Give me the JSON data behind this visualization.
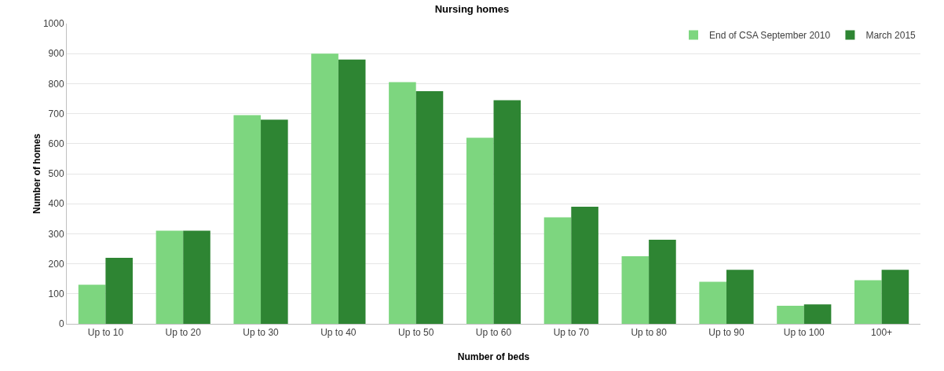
{
  "chart_data": {
    "type": "bar",
    "title": "Nursing homes",
    "xlabel": "Number of beds",
    "ylabel": "Number of homes",
    "categories": [
      "Up to 10",
      "Up to 20",
      "Up to 30",
      "Up to 40",
      "Up to 50",
      "Up to 60",
      "Up to 70",
      "Up to 80",
      "Up to 90",
      "Up to 100",
      "100+"
    ],
    "series": [
      {
        "name": "End of CSA September 2010",
        "color": "#7dd67f",
        "values": [
          130,
          310,
          695,
          900,
          805,
          620,
          355,
          225,
          140,
          60,
          145
        ]
      },
      {
        "name": "March 2015",
        "color": "#2e8533",
        "values": [
          220,
          310,
          680,
          880,
          775,
          745,
          390,
          280,
          180,
          65,
          180
        ]
      }
    ],
    "ylim": [
      0,
      1000
    ],
    "yticks": [
      0,
      100,
      200,
      300,
      400,
      500,
      600,
      700,
      800,
      900,
      1000
    ],
    "grid": "y",
    "legend": "top right"
  }
}
